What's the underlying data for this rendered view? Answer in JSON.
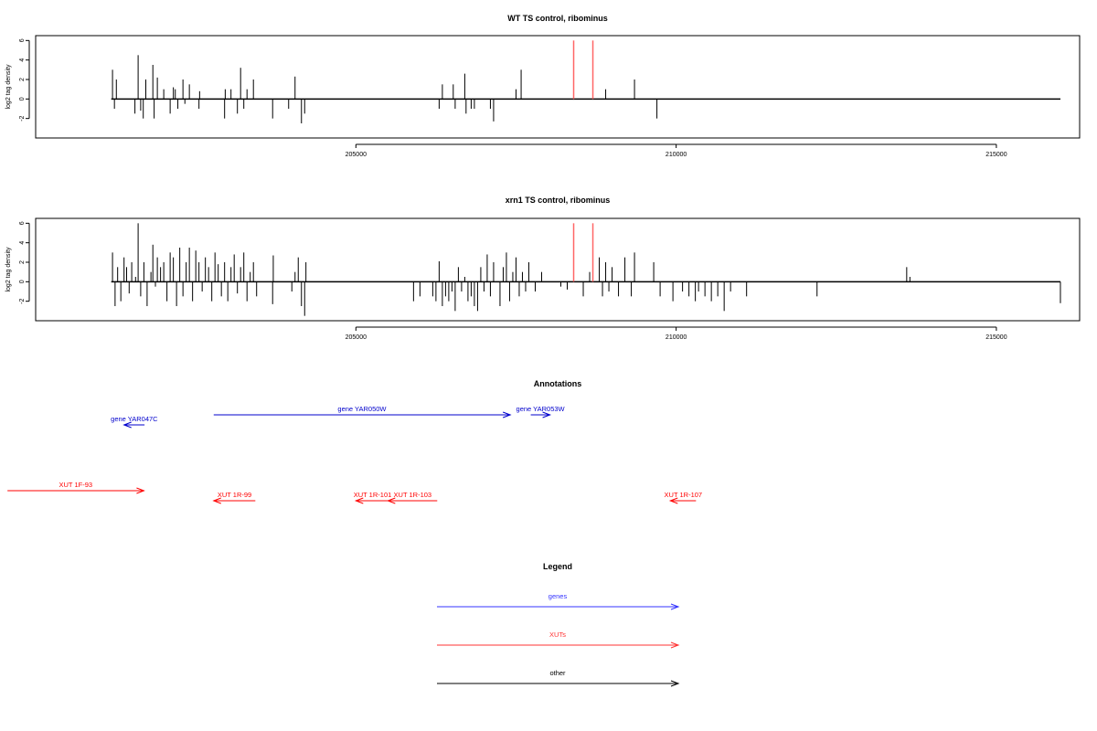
{
  "chart_data": [
    {
      "type": "bar",
      "title": "WT TS control, ribominus",
      "ylabel": "log2 tag density",
      "xlim": [
        200000,
        216300
      ],
      "ylim": [
        -4,
        6.5
      ],
      "yticks": [
        -2,
        0,
        2,
        4,
        6
      ],
      "xticks": [
        205000,
        210000,
        215000
      ],
      "baseline": [
        201180,
        216000
      ],
      "series": [
        {
          "color": "#000000",
          "points": [
            [
              201200,
              3.0
            ],
            [
              201230,
              -1.0
            ],
            [
              201260,
              2.0
            ],
            [
              201550,
              -1.5
            ],
            [
              201600,
              4.5
            ],
            [
              201640,
              -1.2
            ],
            [
              201680,
              -2.0
            ],
            [
              201720,
              2.0
            ],
            [
              201830,
              3.5
            ],
            [
              201850,
              -2.0
            ],
            [
              201900,
              2.2
            ],
            [
              202000,
              1.0
            ],
            [
              202100,
              -1.5
            ],
            [
              202150,
              1.2
            ],
            [
              202180,
              1.0
            ],
            [
              202220,
              -1.0
            ],
            [
              202300,
              2.0
            ],
            [
              202330,
              -0.5
            ],
            [
              202400,
              1.5
            ],
            [
              202550,
              -1.0
            ],
            [
              202560,
              0.8
            ],
            [
              202950,
              -2.0
            ],
            [
              202960,
              1.0
            ],
            [
              203050,
              1.0
            ],
            [
              203150,
              -1.5
            ],
            [
              203200,
              3.2
            ],
            [
              203250,
              -1.0
            ],
            [
              203300,
              1.0
            ],
            [
              203400,
              2.0
            ],
            [
              203700,
              -2.0
            ],
            [
              203950,
              -1.0
            ],
            [
              204050,
              2.3
            ],
            [
              204150,
              -2.5
            ],
            [
              204200,
              -1.5
            ],
            [
              206300,
              -1.0
            ],
            [
              206350,
              1.5
            ],
            [
              206520,
              1.5
            ],
            [
              206550,
              -1.0
            ],
            [
              206700,
              2.6
            ],
            [
              206720,
              -1.5
            ],
            [
              206800,
              -1.0
            ],
            [
              206850,
              -1.0
            ],
            [
              207100,
              -1.0
            ],
            [
              207150,
              -2.3
            ],
            [
              207500,
              1.0
            ],
            [
              207580,
              3.0
            ],
            [
              208900,
              1.0
            ],
            [
              209350,
              2.0
            ],
            [
              209700,
              -2.0
            ]
          ]
        },
        {
          "color": "#ff6666",
          "points": [
            [
              208400,
              6.0
            ],
            [
              208700,
              6.0
            ]
          ]
        }
      ]
    },
    {
      "type": "bar",
      "title": "xrn1 TS control, ribominus",
      "ylabel": "log2 tag density",
      "xlim": [
        200000,
        216300
      ],
      "ylim": [
        -4,
        6.5
      ],
      "yticks": [
        -2,
        0,
        2,
        4,
        6
      ],
      "xticks": [
        205000,
        210000,
        215000
      ],
      "baseline": [
        201180,
        216000
      ],
      "series": [
        {
          "color": "#000000",
          "points": [
            [
              201200,
              3.0
            ],
            [
              201240,
              -2.5
            ],
            [
              201280,
              1.5
            ],
            [
              201330,
              -2.0
            ],
            [
              201380,
              2.5
            ],
            [
              201420,
              1.5
            ],
            [
              201460,
              -1.2
            ],
            [
              201500,
              2.0
            ],
            [
              201560,
              0.5
            ],
            [
              201600,
              6.0
            ],
            [
              201640,
              -1.5
            ],
            [
              201690,
              2.0
            ],
            [
              201740,
              -2.5
            ],
            [
              201800,
              1.0
            ],
            [
              201830,
              3.8
            ],
            [
              201870,
              -0.5
            ],
            [
              201900,
              2.5
            ],
            [
              201950,
              1.5
            ],
            [
              202000,
              2.0
            ],
            [
              202050,
              -2.0
            ],
            [
              202100,
              3.0
            ],
            [
              202150,
              2.5
            ],
            [
              202200,
              -2.5
            ],
            [
              202250,
              3.5
            ],
            [
              202300,
              -1.5
            ],
            [
              202350,
              2.0
            ],
            [
              202400,
              3.5
            ],
            [
              202450,
              -2.0
            ],
            [
              202500,
              3.2
            ],
            [
              202550,
              2.0
            ],
            [
              202600,
              -1.0
            ],
            [
              202650,
              2.5
            ],
            [
              202700,
              1.5
            ],
            [
              202750,
              -2.0
            ],
            [
              202800,
              3.0
            ],
            [
              202850,
              1.8
            ],
            [
              202900,
              -1.5
            ],
            [
              202950,
              2.0
            ],
            [
              203000,
              -2.0
            ],
            [
              203050,
              1.5
            ],
            [
              203100,
              2.8
            ],
            [
              203150,
              -1.2
            ],
            [
              203200,
              1.5
            ],
            [
              203250,
              3.0
            ],
            [
              203300,
              -2.0
            ],
            [
              203350,
              1.0
            ],
            [
              203400,
              2.0
            ],
            [
              203450,
              -1.5
            ],
            [
              203700,
              -2.3
            ],
            [
              203710,
              2.7
            ],
            [
              204000,
              -1.0
            ],
            [
              204050,
              1.0
            ],
            [
              204100,
              2.5
            ],
            [
              204150,
              -2.5
            ],
            [
              204200,
              -3.5
            ],
            [
              204220,
              2.0
            ],
            [
              205900,
              -2.0
            ],
            [
              206000,
              -1.5
            ],
            [
              206200,
              -1.5
            ],
            [
              206250,
              -2.0
            ],
            [
              206300,
              2.1
            ],
            [
              206350,
              -2.5
            ],
            [
              206400,
              -1.5
            ],
            [
              206450,
              -2.0
            ],
            [
              206500,
              -1.0
            ],
            [
              206550,
              -3.0
            ],
            [
              206600,
              1.5
            ],
            [
              206650,
              -1.0
            ],
            [
              206700,
              0.5
            ],
            [
              206750,
              -2.0
            ],
            [
              206800,
              -1.5
            ],
            [
              206850,
              -2.5
            ],
            [
              206900,
              -3.0
            ],
            [
              206950,
              1.5
            ],
            [
              207000,
              -1.0
            ],
            [
              207050,
              2.8
            ],
            [
              207100,
              -1.5
            ],
            [
              207150,
              2.0
            ],
            [
              207250,
              -2.5
            ],
            [
              207300,
              1.5
            ],
            [
              207350,
              3.0
            ],
            [
              207400,
              -2.0
            ],
            [
              207450,
              1.0
            ],
            [
              207500,
              2.5
            ],
            [
              207550,
              -1.5
            ],
            [
              207600,
              1.0
            ],
            [
              207650,
              -1.0
            ],
            [
              207700,
              2.0
            ],
            [
              207800,
              -1.0
            ],
            [
              207900,
              1.0
            ],
            [
              208200,
              -0.5
            ],
            [
              208300,
              -0.8
            ],
            [
              208550,
              -1.5
            ],
            [
              208650,
              1.0
            ],
            [
              208800,
              2.5
            ],
            [
              208850,
              -1.5
            ],
            [
              208900,
              2.0
            ],
            [
              208950,
              -1.0
            ],
            [
              209000,
              1.5
            ],
            [
              209100,
              -1.5
            ],
            [
              209200,
              2.5
            ],
            [
              209300,
              -1.5
            ],
            [
              209350,
              3.0
            ],
            [
              209650,
              2.0
            ],
            [
              209750,
              -1.5
            ],
            [
              209950,
              -2.0
            ],
            [
              210100,
              -1.0
            ],
            [
              210200,
              -1.5
            ],
            [
              210300,
              -2.0
            ],
            [
              210350,
              -1.0
            ],
            [
              210450,
              -1.5
            ],
            [
              210550,
              -2.0
            ],
            [
              210650,
              -1.5
            ],
            [
              210750,
              -3.0
            ],
            [
              210850,
              -1.0
            ],
            [
              211100,
              -1.5
            ],
            [
              212200,
              -1.5
            ],
            [
              213600,
              1.5
            ],
            [
              213650,
              0.5
            ],
            [
              216000,
              -2.2
            ]
          ]
        },
        {
          "color": "#ff6666",
          "points": [
            [
              208400,
              6.0
            ],
            [
              208700,
              6.0
            ]
          ]
        }
      ]
    }
  ],
  "annotations": {
    "title": "Annotations",
    "items": [
      {
        "label": "gene YAR047C",
        "start": 201700,
        "end": 201380,
        "color": "#0000cc",
        "row": 1
      },
      {
        "label": "gene YAR050W",
        "start": 202780,
        "end": 207410,
        "color": "#0000cc",
        "row": 0
      },
      {
        "label": "gene YAR053W",
        "start": 207730,
        "end": 208030,
        "color": "#0000cc",
        "row": 0
      },
      {
        "label": "XUT 1F-93",
        "start": 199560,
        "end": 201690,
        "color": "#ff0000",
        "row": 2
      },
      {
        "label": "XUT 1R-99",
        "start": 203430,
        "end": 202780,
        "color": "#ff0000",
        "row": 3
      },
      {
        "label": "XUT 1R-101",
        "start": 205520,
        "end": 205000,
        "color": "#ff0000",
        "row": 3
      },
      {
        "label": "XUT 1R-103",
        "start": 206270,
        "end": 205500,
        "color": "#ff0000",
        "row": 3
      },
      {
        "label": "XUT 1R-107",
        "start": 210310,
        "end": 209910,
        "color": "#ff0000",
        "row": 3
      }
    ]
  },
  "legend": {
    "title": "Legend",
    "items": [
      {
        "label": "genes",
        "color": "#3333ff"
      },
      {
        "label": "XUTs",
        "color": "#ff3333"
      },
      {
        "label": "other",
        "color": "#000000"
      }
    ]
  }
}
